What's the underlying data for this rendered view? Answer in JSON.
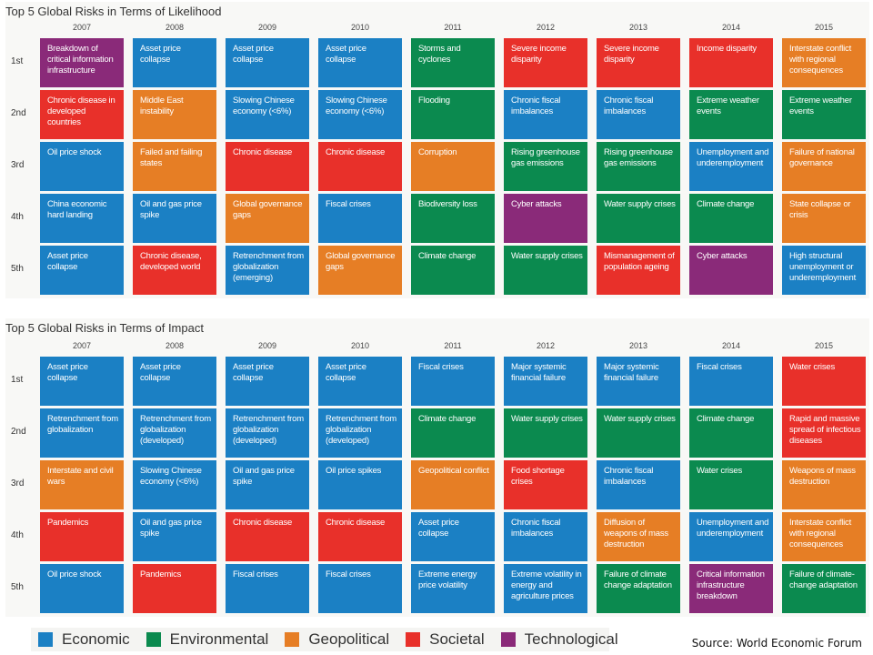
{
  "colors": {
    "E": "#1b80c4",
    "N": "#0b8a4f",
    "G": "#e67e25",
    "S": "#e8302a",
    "T": "#8a2a79"
  },
  "ranks": [
    "1st",
    "2nd",
    "3rd",
    "4th",
    "5th"
  ],
  "years": [
    "2007",
    "2008",
    "2009",
    "2010",
    "2011",
    "2012",
    "2013",
    "2014",
    "2015"
  ],
  "likelihood": {
    "title": "Top 5 Global Risks in Terms of Likelihood",
    "columns": [
      [
        [
          "Breakdown of critical information infrastructure",
          "T"
        ],
        [
          "Chronic disease in developed countries",
          "S"
        ],
        [
          "Oil price shock",
          "E"
        ],
        [
          "China economic hard landing",
          "E"
        ],
        [
          "Asset price collapse",
          "E"
        ]
      ],
      [
        [
          "Asset price collapse",
          "E"
        ],
        [
          "Middle East instability",
          "G"
        ],
        [
          "Failed and failing states",
          "G"
        ],
        [
          "Oil and gas price spike",
          "E"
        ],
        [
          "Chronic disease, developed world",
          "S"
        ]
      ],
      [
        [
          "Asset price collapse",
          "E"
        ],
        [
          "Slowing Chinese economy (<6%)",
          "E"
        ],
        [
          "Chronic disease",
          "S"
        ],
        [
          "Global governance gaps",
          "G"
        ],
        [
          "Retrenchment from globalization (emerging)",
          "E"
        ]
      ],
      [
        [
          "Asset price collapse",
          "E"
        ],
        [
          "Slowing Chinese economy (<6%)",
          "E"
        ],
        [
          "Chronic disease",
          "S"
        ],
        [
          "Fiscal crises",
          "E"
        ],
        [
          "Global governance gaps",
          "G"
        ]
      ],
      [
        [
          "Storms and cyclones",
          "N"
        ],
        [
          "Flooding",
          "N"
        ],
        [
          "Corruption",
          "G"
        ],
        [
          "Biodiversity loss",
          "N"
        ],
        [
          "Climate change",
          "N"
        ]
      ],
      [
        [
          "Severe income disparity",
          "S"
        ],
        [
          "Chronic fiscal imbalances",
          "E"
        ],
        [
          "Rising greenhouse gas emissions",
          "N"
        ],
        [
          "Cyber attacks",
          "T"
        ],
        [
          "Water supply crises",
          "N"
        ]
      ],
      [
        [
          "Severe income disparity",
          "S"
        ],
        [
          "Chronic fiscal imbalances",
          "E"
        ],
        [
          "Rising greenhouse gas emissions",
          "N"
        ],
        [
          "Water supply crises",
          "N"
        ],
        [
          "Mismanagement of population ageing",
          "S"
        ]
      ],
      [
        [
          "Income disparity",
          "S"
        ],
        [
          "Extreme weather events",
          "N"
        ],
        [
          "Unemployment and underemployment",
          "E"
        ],
        [
          "Climate change",
          "N"
        ],
        [
          "Cyber attacks",
          "T"
        ]
      ],
      [
        [
          "Interstate conflict with regional consequences",
          "G"
        ],
        [
          "Extreme weather events",
          "N"
        ],
        [
          "Failure of national governance",
          "G"
        ],
        [
          "State collapse or crisis",
          "G"
        ],
        [
          "High structural unemployment or underemployment",
          "E"
        ]
      ]
    ]
  },
  "impact": {
    "title": "Top 5 Global Risks in Terms of Impact",
    "columns": [
      [
        [
          "Asset price collapse",
          "E"
        ],
        [
          "Retrenchment from globalization",
          "E"
        ],
        [
          "Interstate and civil wars",
          "G"
        ],
        [
          "Pandemics",
          "S"
        ],
        [
          "Oil price shock",
          "E"
        ]
      ],
      [
        [
          "Asset price collapse",
          "E"
        ],
        [
          "Retrenchment from globalization (developed)",
          "E"
        ],
        [
          "Slowing Chinese economy (<6%)",
          "E"
        ],
        [
          "Oil and gas price spike",
          "E"
        ],
        [
          "Pandemics",
          "S"
        ]
      ],
      [
        [
          "Asset price collapse",
          "E"
        ],
        [
          "Retrenchment from globalization (developed)",
          "E"
        ],
        [
          "Oil and gas price spike",
          "E"
        ],
        [
          "Chronic disease",
          "S"
        ],
        [
          "Fiscal crises",
          "E"
        ]
      ],
      [
        [
          "Asset price collapse",
          "E"
        ],
        [
          "Retrenchment from globalization (developed)",
          "E"
        ],
        [
          "Oil price spikes",
          "E"
        ],
        [
          "Chronic disease",
          "S"
        ],
        [
          "Fiscal crises",
          "E"
        ]
      ],
      [
        [
          "Fiscal crises",
          "E"
        ],
        [
          "Climate change",
          "N"
        ],
        [
          "Geopolitical conflict",
          "G"
        ],
        [
          "Asset price collapse",
          "E"
        ],
        [
          "Extreme energy price volatility",
          "E"
        ]
      ],
      [
        [
          "Major systemic financial failure",
          "E"
        ],
        [
          "Water supply crises",
          "N"
        ],
        [
          "Food shortage crises",
          "S"
        ],
        [
          "Chronic fiscal imbalances",
          "E"
        ],
        [
          "Extreme volatility in energy and agriculture prices",
          "E"
        ]
      ],
      [
        [
          "Major systemic financial failure",
          "E"
        ],
        [
          "Water supply crises",
          "N"
        ],
        [
          "Chronic fiscal imbalances",
          "E"
        ],
        [
          "Diffusion of weapons of mass destruction",
          "G"
        ],
        [
          "Failure of climate change adaptation",
          "N"
        ]
      ],
      [
        [
          "Fiscal crises",
          "E"
        ],
        [
          "Climate change",
          "N"
        ],
        [
          "Water crises",
          "N"
        ],
        [
          "Unemployment and underemployment",
          "E"
        ],
        [
          "Critical information infrastructure breakdown",
          "T"
        ]
      ],
      [
        [
          "Water crises",
          "S"
        ],
        [
          "Rapid and massive spread of infectious diseases",
          "S"
        ],
        [
          "Weapons of mass destruction",
          "G"
        ],
        [
          "Interstate conflict with regional consequences",
          "G"
        ],
        [
          "Failure of climate-change adaptation",
          "N"
        ]
      ]
    ]
  },
  "legend": [
    {
      "label": "Economic",
      "key": "E"
    },
    {
      "label": "Environmental",
      "key": "N"
    },
    {
      "label": "Geopolitical",
      "key": "G"
    },
    {
      "label": "Societal",
      "key": "S"
    },
    {
      "label": "Technological",
      "key": "T"
    }
  ],
  "source": "Source: World Economic Forum"
}
